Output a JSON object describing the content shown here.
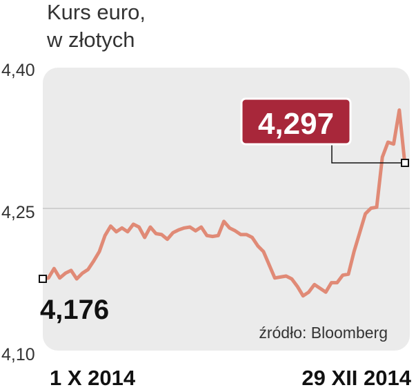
{
  "chart_data": {
    "type": "line",
    "title_lines": [
      "Kurs euro,",
      "w złotych"
    ],
    "xlabel": "",
    "ylabel": "",
    "ylim": [
      4.1,
      4.4
    ],
    "yticks": [
      {
        "value": 4.4,
        "label": "4,40"
      },
      {
        "value": 4.25,
        "label": "4,25"
      },
      {
        "value": 4.1,
        "label": "4,10"
      }
    ],
    "x_start_label": "1 X 2014",
    "x_end_label": "29 XII 2014",
    "start_value_label": "4,176",
    "end_value_label": "4,297",
    "source": "źródło: Bloomberg",
    "grid": "horizontal at 4,25",
    "line_color": "#e08a76",
    "highlight_color": "#a8273a",
    "series": [
      {
        "values": [
          4.176,
          4.177,
          4.187,
          4.177,
          4.182,
          4.185,
          4.176,
          4.182,
          4.186,
          4.195,
          4.205,
          4.222,
          4.232,
          4.226,
          4.23,
          4.226,
          4.234,
          4.231,
          4.22,
          4.231,
          4.224,
          4.223,
          4.218,
          4.225,
          4.228,
          4.23,
          4.231,
          4.227,
          4.231,
          4.222,
          4.221,
          4.222,
          4.237,
          4.23,
          4.227,
          4.223,
          4.223,
          4.22,
          4.211,
          4.205,
          4.191,
          4.177,
          4.178,
          4.179,
          4.176,
          4.168,
          4.158,
          4.162,
          4.17,
          4.166,
          4.162,
          4.172,
          4.172,
          4.18,
          4.181,
          4.205,
          4.225,
          4.245,
          4.251,
          4.252,
          4.305,
          4.321,
          4.319,
          4.355,
          4.297
        ]
      }
    ]
  }
}
